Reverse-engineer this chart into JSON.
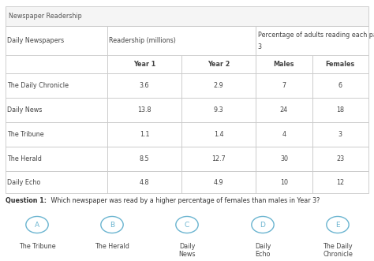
{
  "title": "Newspaper Readership",
  "rows": [
    [
      "The Daily Chronicle",
      "3.6",
      "2.9",
      "7",
      "6"
    ],
    [
      "Daily News",
      "13.8",
      "9.3",
      "24",
      "18"
    ],
    [
      "The Tribune",
      "1.1",
      "1.4",
      "4",
      "3"
    ],
    [
      "The Herald",
      "8.5",
      "12.7",
      "30",
      "23"
    ],
    [
      "Daily Echo",
      "4.8",
      "4.9",
      "10",
      "12"
    ]
  ],
  "question_bold": "Question 1:",
  "question_rest": " Which newspaper was read by a higher percentage of females than males in Year 3?",
  "options": [
    "A",
    "B",
    "C",
    "D",
    "E"
  ],
  "option_labels": [
    "The Tribune",
    "The Herald",
    "Daily\nNews",
    "Daily\nEcho",
    "The Daily\nChronicle"
  ],
  "bg_color": "#ffffff",
  "border_color": "#c8c8c8",
  "text_color": "#444444",
  "circle_color": "#6ab4d0",
  "title_color": "#555555",
  "fig_width": 4.74,
  "fig_height": 3.31,
  "dpi": 100
}
